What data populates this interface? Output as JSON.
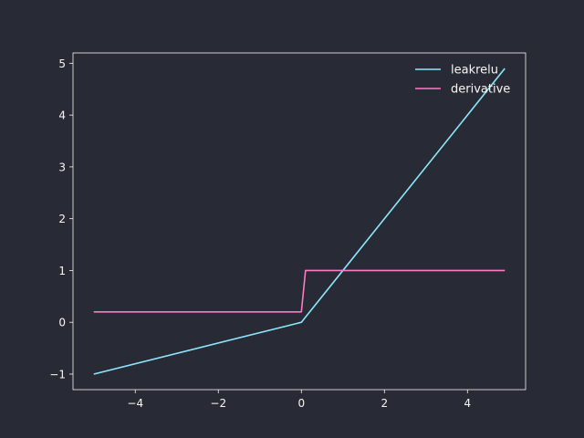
{
  "chart_data": {
    "type": "line",
    "title": "",
    "xlabel": "",
    "ylabel": "",
    "xlim": [
      -5.5,
      5.4
    ],
    "ylim": [
      -1.3,
      5.2
    ],
    "x_ticks": [
      -4,
      -2,
      0,
      2,
      4
    ],
    "y_ticks": [
      -1,
      0,
      1,
      2,
      3,
      4,
      5
    ],
    "x_tick_labels": [
      "−4",
      "−2",
      "0",
      "2",
      "4"
    ],
    "y_tick_labels": [
      "−1",
      "0",
      "1",
      "2",
      "3",
      "4",
      "5"
    ],
    "grid": false,
    "legend_position": "top-right",
    "colors": {
      "background": "#282a36",
      "axes": "#f8f8f2"
    },
    "series": [
      {
        "name": "leakrelu",
        "color": "#8be9fd",
        "x": [
          -5.0,
          -0.1,
          0.0,
          0.1,
          4.9
        ],
        "y": [
          -1.0,
          -0.02,
          0.0,
          0.1,
          4.9
        ]
      },
      {
        "name": "derivative",
        "color": "#ff79c6",
        "x": [
          -5.0,
          -0.1,
          0.0,
          0.1,
          4.9
        ],
        "y": [
          0.2,
          0.2,
          0.2,
          1.0,
          1.0
        ]
      }
    ]
  }
}
